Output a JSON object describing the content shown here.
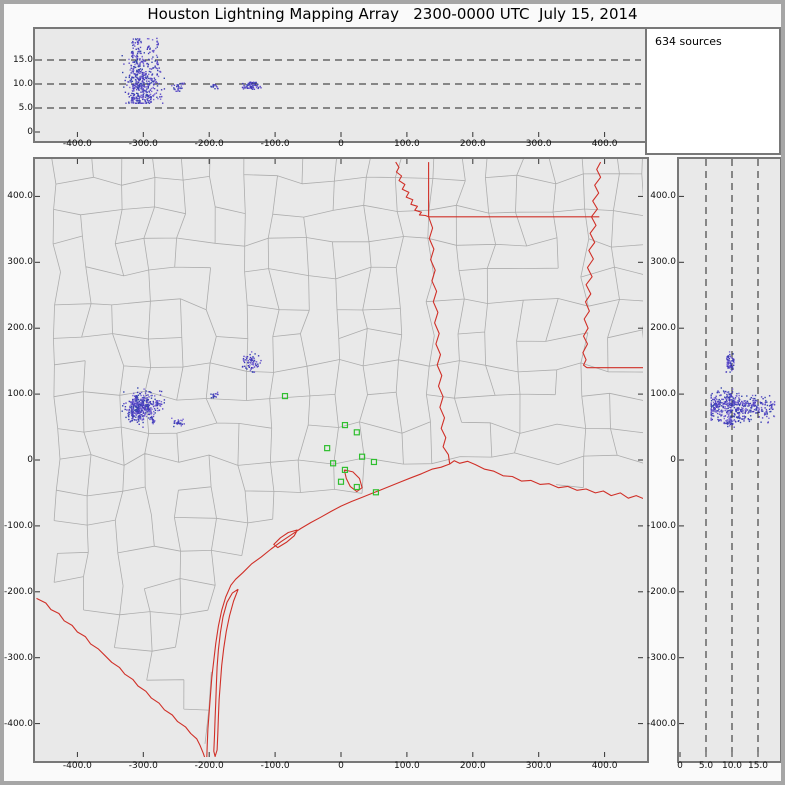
{
  "window": {
    "title": "Houston Lightning Mapping Array   2300-0000 UTC  July 15, 2014"
  },
  "sources_box": {
    "label": "634 sources"
  },
  "colors": {
    "window_border": "#a6a6a6",
    "panel_border": "#787878",
    "plot_background": "#e9e9e9",
    "county_lines": "#adadad",
    "state_borders": "#d03028",
    "reference_dashes": "#222222",
    "tick_marks": "#333333",
    "station_marker": "#2fbf2f",
    "source_colors": [
      "#4038b8",
      "#5a48c6",
      "#7a68d4",
      "#3646ae"
    ]
  },
  "chart_data": {
    "type": "scatter",
    "figure": "lightning-mapping-array-three-panel",
    "title": "Houston Lightning Mapping Array 2300-0000 UTC July 15, 2014",
    "total_sources": 634,
    "reference_altitudes_km": [
      5,
      10,
      15
    ],
    "panels": [
      {
        "id": "altitude-vs-east-west",
        "x_ticks": {
          "labels": [
            "-400.0",
            "-300.0",
            "-200.0",
            "-100.0",
            "0",
            "100.0",
            "200.0",
            "300.0",
            "400.0"
          ],
          "values": [
            -400,
            -300,
            -200,
            -100,
            0,
            100,
            200,
            300,
            400
          ]
        },
        "y_ticks": {
          "labels": [
            "15.0",
            "10.0",
            "5.0",
            "0"
          ],
          "values": [
            15,
            10,
            5,
            0
          ]
        },
        "xlim": [
          -465,
          465
        ],
        "ylim": [
          0,
          21.5
        ],
        "grid": "dashed-horizontal"
      },
      {
        "id": "plan-view-map",
        "x_ticks": {
          "labels": [
            "-400.0",
            "-300.0",
            "-200.0",
            "-100.0",
            "0",
            "100.0",
            "200.0",
            "300.0",
            "400.0"
          ],
          "values": [
            -400,
            -300,
            -200,
            -100,
            0,
            100,
            200,
            300,
            400
          ]
        },
        "y_ticks": {
          "labels": [
            "400.0",
            "300.0",
            "200.0",
            "100.0",
            "0",
            "-100.0",
            "-200.0",
            "-300.0",
            "-400.0"
          ],
          "values": [
            400,
            300,
            200,
            100,
            0,
            -100,
            -200,
            -300,
            -400
          ]
        },
        "xlim": [
          -465,
          465
        ],
        "ylim": [
          -465,
          465
        ],
        "grid": "none",
        "overlays": [
          "texas-louisiana-county-boundaries",
          "state-borders",
          "gulf-coastline",
          "rio-grande",
          "barrier-island",
          "bays"
        ]
      },
      {
        "id": "altitude-vs-north-south",
        "x_ticks": {
          "labels": [
            "0",
            "5.0",
            "10.0",
            "15.0"
          ],
          "values": [
            0,
            5,
            10,
            15
          ]
        },
        "y_ticks": {
          "labels": [
            "400.0",
            "300.0",
            "200.0",
            "100.0",
            "0",
            "-100.0",
            "-200.0",
            "-300.0",
            "-400.0"
          ],
          "values": [
            400,
            300,
            200,
            100,
            0,
            -100,
            -200,
            -300,
            -400
          ]
        },
        "xlim": [
          0,
          18.5
        ],
        "ylim": [
          -465,
          465
        ],
        "grid": "dashed-vertical"
      }
    ],
    "lma_stations_xy_km": [
      [
        -85,
        97
      ],
      [
        6,
        53
      ],
      [
        24,
        42
      ],
      [
        -21,
        18
      ],
      [
        32,
        5
      ],
      [
        -12,
        -5
      ],
      [
        6,
        -15
      ],
      [
        50,
        -3
      ],
      [
        0,
        -33
      ],
      [
        24,
        -41
      ],
      [
        53,
        -49
      ]
    ],
    "source_clusters": [
      {
        "name": "storm-cell-west",
        "center_x_km": -300,
        "center_y_km": 80,
        "alt_min_km": 6.0,
        "alt_max_km": 19.5,
        "sigma_x_km": 13,
        "sigma_y_km": 12,
        "count": 520,
        "streaky": true
      },
      {
        "name": "storm-cell-north",
        "center_x_km": -137,
        "center_y_km": 147,
        "alt_min_km": 8.8,
        "alt_max_km": 10.4,
        "sigma_x_km": 6,
        "sigma_y_km": 8,
        "count": 70,
        "streaky": false
      },
      {
        "name": "small-cell-a",
        "center_x_km": -248,
        "center_y_km": 56,
        "alt_min_km": 8.4,
        "alt_max_km": 10.2,
        "sigma_x_km": 5,
        "sigma_y_km": 3,
        "count": 28,
        "streaky": false
      },
      {
        "name": "small-cell-b",
        "center_x_km": -192,
        "center_y_km": 97,
        "alt_min_km": 9.0,
        "alt_max_km": 9.9,
        "sigma_x_km": 2.5,
        "sigma_y_km": 2.5,
        "count": 16,
        "streaky": false
      }
    ]
  }
}
